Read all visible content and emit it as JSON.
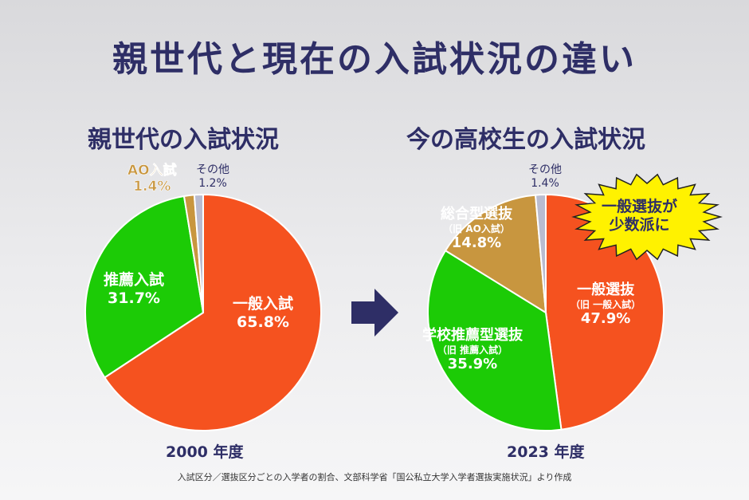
{
  "title": "親世代と現在の入試状況の違い",
  "colors": {
    "red": "#F5521F",
    "green": "#1CCB06",
    "tan": "#C8963F",
    "gray": "#B9BCD0",
    "navy": "#2E2E66"
  },
  "chart_data": [
    {
      "type": "pie",
      "title": "親世代の入試状況",
      "caption": "2000 年度",
      "slices": [
        {
          "label": "一般入試",
          "value": 65.8,
          "display": "65.8%",
          "color": "#F5521F"
        },
        {
          "label": "推薦入試",
          "value": 31.7,
          "display": "31.7%",
          "color": "#1CCB06"
        },
        {
          "label": "AO入試",
          "value": 1.4,
          "display": "1.4%",
          "color": "#C8963F"
        },
        {
          "label": "その他",
          "value": 1.2,
          "display": "1.2%",
          "color": "#B9BCD0"
        }
      ]
    },
    {
      "type": "pie",
      "title": "今の高校生の入試状況",
      "caption": "2023 年度",
      "slices": [
        {
          "label": "一般選抜",
          "note": "（旧 一般入試）",
          "value": 47.9,
          "display": "47.9%",
          "color": "#F5521F"
        },
        {
          "label": "学校推薦型選抜",
          "note": "（旧 推薦入試）",
          "value": 35.9,
          "display": "35.9%",
          "color": "#1CCB06"
        },
        {
          "label": "総合型選抜",
          "note": "（旧 AO入試）",
          "value": 14.8,
          "display": "14.8%",
          "color": "#C8963F"
        },
        {
          "label": "その他",
          "value": 1.4,
          "display": "1.4%",
          "color": "#B9BCD0"
        }
      ]
    }
  ],
  "badge": {
    "line1": "一般選抜が",
    "line2": "少数派に"
  },
  "arrow_icon": "right-arrow",
  "footnote": "入試区分／選抜区分ごとの入学者の割合、文部科学省「国公私立大学入学者選抜実施状況」より作成"
}
